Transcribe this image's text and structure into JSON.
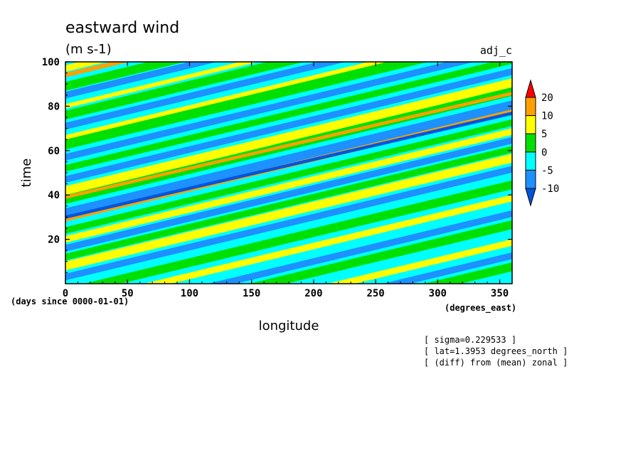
{
  "chart_data": {
    "type": "heatmap",
    "title": "eastward wind",
    "units": "(m s-1)",
    "run_label": "adj_c",
    "xlabel": "longitude",
    "ylabel": "time",
    "x_units": "(degrees_east)",
    "y_units": "(days since 0000-01-01)",
    "xlim": [
      0,
      360
    ],
    "ylim": [
      0,
      100
    ],
    "x_ticks": [
      0,
      50,
      100,
      150,
      200,
      250,
      300,
      350
    ],
    "y_ticks": [
      20,
      40,
      60,
      80,
      100
    ],
    "colorbar": {
      "levels": [
        -10,
        -5,
        0,
        5,
        10,
        20
      ],
      "colors": [
        "#0055dd",
        "#1e90ff",
        "#00ffff",
        "#00e000",
        "#ffff00",
        "#ffa000",
        "#ff0000"
      ]
    },
    "background_color": "#00ffff",
    "bands": [
      {
        "value": -7,
        "t_at_lon0": 3,
        "slope": 0.135,
        "thickness": 3
      },
      {
        "value": 7,
        "t_at_lon0": 8,
        "slope": 0.135,
        "thickness": 4
      },
      {
        "value": 3,
        "t_at_lon0": 12,
        "slope": 0.135,
        "thickness": 3
      },
      {
        "value": -7,
        "t_at_lon0": 16,
        "slope": 0.135,
        "thickness": 3
      },
      {
        "value": 7,
        "t_at_lon0": 20,
        "slope": 0.135,
        "thickness": 3
      },
      {
        "value": 3,
        "t_at_lon0": 24,
        "slope": 0.135,
        "thickness": 3
      },
      {
        "value": 12,
        "t_at_lon0": 29,
        "slope": 0.135,
        "thickness": 2
      },
      {
        "value": -7,
        "t_at_lon0": 32,
        "slope": 0.135,
        "thickness": 4
      },
      {
        "value": -12,
        "t_at_lon0": 30,
        "slope": 0.13,
        "thickness": 1.5
      },
      {
        "value": 3,
        "t_at_lon0": 38,
        "slope": 0.135,
        "thickness": 4
      },
      {
        "value": 7,
        "t_at_lon0": 42,
        "slope": 0.135,
        "thickness": 4
      },
      {
        "value": 12,
        "t_at_lon0": 39,
        "slope": 0.13,
        "thickness": 1.5
      },
      {
        "value": -7,
        "t_at_lon0": 47,
        "slope": 0.135,
        "thickness": 3
      },
      {
        "value": 3,
        "t_at_lon0": 52,
        "slope": 0.135,
        "thickness": 3
      },
      {
        "value": -7,
        "t_at_lon0": 57,
        "slope": 0.135,
        "thickness": 3
      },
      {
        "value": 3,
        "t_at_lon0": 63,
        "slope": 0.135,
        "thickness": 5
      },
      {
        "value": 7,
        "t_at_lon0": 66,
        "slope": 0.135,
        "thickness": 2
      },
      {
        "value": -7,
        "t_at_lon0": 71,
        "slope": 0.135,
        "thickness": 3
      },
      {
        "value": 3,
        "t_at_lon0": 76,
        "slope": 0.135,
        "thickness": 4
      },
      {
        "value": 7,
        "t_at_lon0": 80,
        "slope": 0.135,
        "thickness": 2
      },
      {
        "value": -7,
        "t_at_lon0": 85,
        "slope": 0.135,
        "thickness": 3
      },
      {
        "value": 3,
        "t_at_lon0": 89,
        "slope": 0.135,
        "thickness": 4
      },
      {
        "value": 12,
        "t_at_lon0": 94,
        "slope": 0.135,
        "thickness": 2
      },
      {
        "value": 7,
        "t_at_lon0": 97,
        "slope": 0.135,
        "thickness": 3
      },
      {
        "value": -7,
        "t_at_lon0": 101,
        "slope": 0.135,
        "thickness": 3
      },
      {
        "value": 3,
        "t_at_lon0": -4,
        "slope": 0.135,
        "thickness": 4
      },
      {
        "value": 7,
        "t_at_lon0": -10,
        "slope": 0.135,
        "thickness": 3
      },
      {
        "value": -7,
        "t_at_lon0": -17,
        "slope": 0.135,
        "thickness": 3
      },
      {
        "value": 3,
        "t_at_lon0": -22,
        "slope": 0.135,
        "thickness": 4
      },
      {
        "value": 7,
        "t_at_lon0": -30,
        "slope": 0.135,
        "thickness": 3
      },
      {
        "value": -7,
        "t_at_lon0": -36,
        "slope": 0.135,
        "thickness": 3
      },
      {
        "value": 3,
        "t_at_lon0": -41,
        "slope": 0.135,
        "thickness": 4
      }
    ]
  },
  "annotations": [
    "[ sigma=0.229533 ]",
    "[ lat=1.3953 degrees_north ]",
    "[ (diff) from (mean) zonal ]"
  ]
}
